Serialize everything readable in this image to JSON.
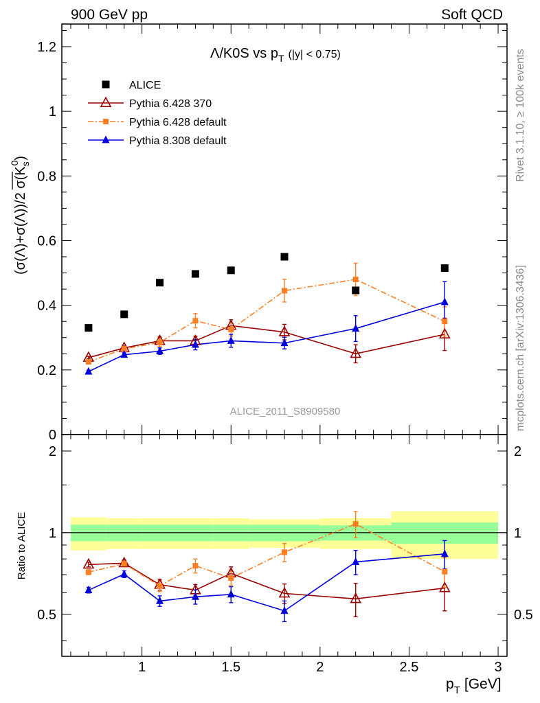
{
  "header": {
    "left": "900 GeV pp",
    "right": "Soft QCD"
  },
  "side_labels": {
    "rivet": "Rivet 3.1.10, ≥ 100k events",
    "mcplots": "mcplots.cern.ch [arXiv:1306.3436]"
  },
  "chart_data": {
    "type": "scatter",
    "title_main": "Λ/K0S vs p",
    "title_sub": "T",
    "title_range": "(|y| < 0.75)",
    "analysis_label": "ALICE_2011_S8909580",
    "xlabel": "p",
    "xlabel_sub": "T",
    "xlabel_unit": "[GeV]",
    "ylabel": "(σ(Λ)+σ(Λ))/2 σ(K",
    "ylabel_sub": "s",
    "ylabel_sup": "0",
    "ylabel_close": ")",
    "ratio_ylabel": "Ratio to ALICE",
    "xlim": [
      0.55,
      3.05
    ],
    "ylim": [
      0,
      1.27
    ],
    "ratio_ylim": [
      0.35,
      2.3
    ],
    "x_ticks": [
      "1",
      "1.5",
      "2",
      "2.5",
      "3"
    ],
    "y_ticks": [
      "0",
      "0.2",
      "0.4",
      "0.6",
      "0.8",
      "1",
      "1.2"
    ],
    "ratio_y_ticks": [
      "0.5",
      "1",
      "2"
    ],
    "x": [
      0.7,
      0.9,
      1.1,
      1.3,
      1.5,
      1.8,
      2.2,
      2.7
    ],
    "x_bins": [
      [
        0.6,
        0.8
      ],
      [
        0.8,
        1.0
      ],
      [
        1.0,
        1.2
      ],
      [
        1.2,
        1.4
      ],
      [
        1.4,
        1.6
      ],
      [
        1.6,
        2.0
      ],
      [
        2.0,
        2.4
      ],
      [
        2.4,
        3.0
      ]
    ],
    "reference": {
      "name": "ALICE",
      "color": "#000000",
      "values": [
        0.33,
        0.372,
        0.47,
        0.497,
        0.508,
        0.55,
        0.446,
        0.515
      ],
      "band_inner": [
        0.07,
        0.07,
        0.07,
        0.07,
        0.07,
        0.07,
        0.065,
        0.09
      ],
      "band_outer": [
        0.14,
        0.13,
        0.13,
        0.13,
        0.13,
        0.12,
        0.13,
        0.2
      ]
    },
    "series": [
      {
        "name": "Pythia 6.428 370",
        "color": "#990000",
        "marker": "triangle-open",
        "line": "solid",
        "values": [
          0.238,
          0.268,
          0.29,
          0.29,
          0.337,
          0.317,
          0.25,
          0.31
        ],
        "errors": [
          0.004,
          0.006,
          0.012,
          0.014,
          0.018,
          0.024,
          0.028,
          0.05
        ],
        "ratio": [
          0.763,
          0.772,
          0.643,
          0.614,
          0.708,
          0.597,
          0.57,
          0.625
        ],
        "ratio_errors": [
          0.015,
          0.02,
          0.03,
          0.03,
          0.04,
          0.05,
          0.08,
          0.11
        ]
      },
      {
        "name": "Pythia 6.428 default",
        "color": "#ff7f24",
        "marker": "square",
        "line": "dashdot",
        "values": [
          0.225,
          0.265,
          0.285,
          0.352,
          0.325,
          0.445,
          0.48,
          0.35
        ],
        "errors": [
          0.005,
          0.007,
          0.012,
          0.022,
          0.02,
          0.035,
          0.05,
          0.045
        ],
        "ratio": [
          0.715,
          0.768,
          0.636,
          0.755,
          0.68,
          0.847,
          1.077,
          0.718
        ],
        "ratio_errors": [
          0.015,
          0.02,
          0.03,
          0.045,
          0.04,
          0.065,
          0.12,
          0.09
        ]
      },
      {
        "name": "Pythia 8.308 default",
        "color": "#0000dd",
        "marker": "triangle-filled",
        "line": "solid",
        "values": [
          0.195,
          0.247,
          0.258,
          0.278,
          0.29,
          0.283,
          0.328,
          0.41
        ],
        "errors": [
          0.004,
          0.006,
          0.01,
          0.016,
          0.02,
          0.018,
          0.04,
          0.063
        ],
        "ratio": [
          0.614,
          0.703,
          0.56,
          0.58,
          0.592,
          0.515,
          0.78,
          0.835
        ],
        "ratio_errors": [
          0.015,
          0.02,
          0.025,
          0.035,
          0.04,
          0.045,
          0.08,
          0.1
        ]
      }
    ]
  }
}
